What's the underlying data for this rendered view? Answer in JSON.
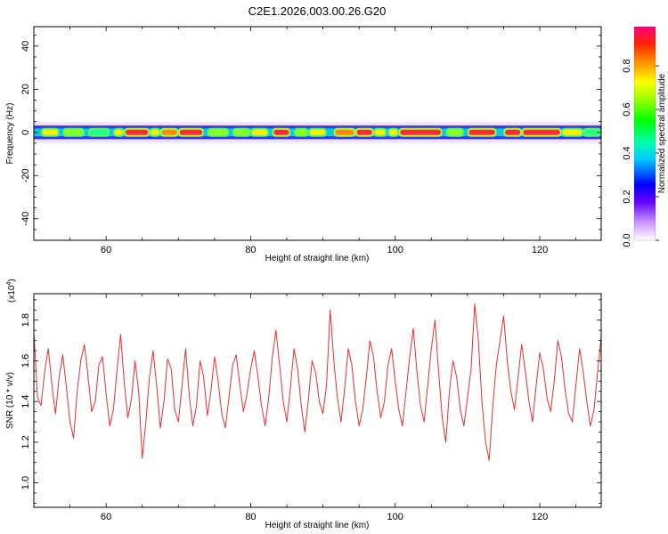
{
  "title": "C2E1.2026.003.00.26.G20",
  "chart_data": [
    {
      "type": "heatmap",
      "name": "spectrogram",
      "xlabel": "Height of straight line (km)",
      "ylabel": "Frequency (Hz)",
      "xlim": [
        50,
        128.5
      ],
      "ylim": [
        -50,
        49
      ],
      "xticks": [
        60,
        80,
        100,
        120
      ],
      "yticks": [
        -40,
        -20,
        0,
        20,
        40
      ],
      "band_center_hz": 0,
      "band_halfwidth_hz": 3,
      "ridge_segments": [
        {
          "x0": 51.0,
          "x1": 53.5,
          "amp": 0.75
        },
        {
          "x0": 54.0,
          "x1": 57.0,
          "amp": 0.6
        },
        {
          "x0": 57.5,
          "x1": 60.5,
          "amp": 0.55
        },
        {
          "x0": 61.0,
          "x1": 62.5,
          "amp": 0.7
        },
        {
          "x0": 62.5,
          "x1": 66.0,
          "amp": 0.95
        },
        {
          "x0": 66.0,
          "x1": 67.5,
          "amp": 0.75
        },
        {
          "x0": 67.5,
          "x1": 70.0,
          "amp": 0.85
        },
        {
          "x0": 70.0,
          "x1": 73.5,
          "amp": 0.95
        },
        {
          "x0": 74.0,
          "x1": 77.0,
          "amp": 0.6
        },
        {
          "x0": 77.5,
          "x1": 80.0,
          "amp": 0.65
        },
        {
          "x0": 80.0,
          "x1": 82.5,
          "amp": 0.7
        },
        {
          "x0": 83.0,
          "x1": 85.5,
          "amp": 0.95
        },
        {
          "x0": 86.0,
          "x1": 88.0,
          "amp": 0.6
        },
        {
          "x0": 88.0,
          "x1": 90.5,
          "amp": 0.75
        },
        {
          "x0": 91.5,
          "x1": 94.5,
          "amp": 0.8
        },
        {
          "x0": 94.5,
          "x1": 97.0,
          "amp": 0.9
        },
        {
          "x0": 97.0,
          "x1": 98.8,
          "amp": 0.7
        },
        {
          "x0": 99.0,
          "x1": 100.5,
          "amp": 0.78
        },
        {
          "x0": 100.5,
          "x1": 106.5,
          "amp": 0.95
        },
        {
          "x0": 107.0,
          "x1": 109.5,
          "amp": 0.6
        },
        {
          "x0": 110.0,
          "x1": 114.0,
          "amp": 0.9
        },
        {
          "x0": 115.0,
          "x1": 117.5,
          "amp": 0.95
        },
        {
          "x0": 117.5,
          "x1": 123.0,
          "amp": 0.97
        },
        {
          "x0": 123.0,
          "x1": 126.0,
          "amp": 0.7
        },
        {
          "x0": 126.0,
          "x1": 128.5,
          "amp": 0.55
        }
      ]
    },
    {
      "type": "colorbar",
      "name": "amplitude-colorbar",
      "label": "Normalized spectral amplitude",
      "range": [
        0,
        0.98
      ],
      "ticks": [
        "0.0",
        "0.2",
        "0.4",
        "0.6",
        "0.8"
      ],
      "tick_values": [
        0.0,
        0.2,
        0.4,
        0.6,
        0.8
      ]
    },
    {
      "type": "line",
      "name": "snr",
      "xlabel": "Height of straight line (km)",
      "ylabel": "SNR (10 * v/v)",
      "scale_label": "(x10",
      "scale_exp": "4",
      "scale_close": ")",
      "xlim": [
        50,
        128.5
      ],
      "ylim": [
        0.88,
        1.93
      ],
      "xticks": [
        60,
        80,
        100,
        120
      ],
      "yticks": [
        "1.0",
        "1.2",
        "1.4",
        "1.6",
        "1.8"
      ],
      "ytick_values": [
        1.0,
        1.2,
        1.4,
        1.6,
        1.8
      ],
      "color": "#e53030",
      "x_start": 50,
      "x_step": 0.5,
      "y": [
        1.74,
        1.42,
        1.38,
        1.55,
        1.66,
        1.48,
        1.34,
        1.52,
        1.63,
        1.47,
        1.3,
        1.22,
        1.45,
        1.6,
        1.68,
        1.52,
        1.35,
        1.4,
        1.58,
        1.62,
        1.44,
        1.28,
        1.36,
        1.55,
        1.73,
        1.5,
        1.32,
        1.41,
        1.6,
        1.45,
        1.12,
        1.3,
        1.52,
        1.65,
        1.48,
        1.27,
        1.4,
        1.61,
        1.56,
        1.36,
        1.3,
        1.48,
        1.66,
        1.43,
        1.28,
        1.38,
        1.6,
        1.52,
        1.33,
        1.45,
        1.62,
        1.5,
        1.34,
        1.27,
        1.42,
        1.58,
        1.63,
        1.48,
        1.35,
        1.44,
        1.56,
        1.65,
        1.52,
        1.38,
        1.28,
        1.42,
        1.62,
        1.75,
        1.58,
        1.4,
        1.3,
        1.47,
        1.66,
        1.56,
        1.38,
        1.25,
        1.42,
        1.6,
        1.54,
        1.4,
        1.34,
        1.48,
        1.85,
        1.6,
        1.42,
        1.3,
        1.46,
        1.66,
        1.58,
        1.4,
        1.28,
        1.36,
        1.52,
        1.7,
        1.62,
        1.45,
        1.32,
        1.4,
        1.58,
        1.66,
        1.5,
        1.36,
        1.28,
        1.45,
        1.62,
        1.76,
        1.55,
        1.38,
        1.3,
        1.48,
        1.66,
        1.8,
        1.55,
        1.32,
        1.2,
        1.45,
        1.6,
        1.52,
        1.36,
        1.28,
        1.42,
        1.56,
        1.88,
        1.7,
        1.4,
        1.2,
        1.11,
        1.38,
        1.58,
        1.7,
        1.82,
        1.6,
        1.45,
        1.36,
        1.52,
        1.68,
        1.55,
        1.4,
        1.3,
        1.48,
        1.64,
        1.56,
        1.42,
        1.35,
        1.5,
        1.7,
        1.62,
        1.46,
        1.34,
        1.3,
        1.48,
        1.66,
        1.55,
        1.4,
        1.28,
        1.36,
        1.54,
        1.72,
        1.6,
        1.44,
        1.32,
        1.4,
        1.57,
        1.64,
        1.5,
        1.34,
        1.26,
        1.44,
        1.62,
        1.84,
        1.64,
        1.42,
        1.2,
        1.12,
        1.36,
        1.58,
        1.68,
        1.52,
        1.38,
        1.3,
        1.48,
        1.83,
        1.65,
        1.4,
        1.22,
        1.34,
        1.55,
        1.72,
        1.6,
        1.4,
        1.3,
        1.44,
        1.62,
        1.5,
        1.3,
        1.16,
        1.02,
        1.28,
        1.5,
        1.62,
        1.48,
        1.34,
        1.26,
        1.42,
        1.6,
        1.78,
        1.6,
        1.38,
        1.22,
        1.15,
        1.4,
        1.62,
        1.54,
        1.4,
        1.32,
        1.48,
        1.66,
        1.58,
        1.42,
        1.3,
        1.08,
        1.32,
        1.55,
        1.72,
        1.6,
        1.44,
        1.35,
        1.52,
        1.7,
        1.85,
        1.92,
        1.6,
        1.36,
        1.22,
        1.4,
        1.58,
        1.66,
        1.5,
        1.36,
        1.3,
        1.46,
        1.62,
        1.56,
        1.4,
        1.28,
        1.2,
        1.42,
        1.6,
        1.68,
        1.54,
        1.4,
        1.87,
        1.72,
        1.5,
        1.3,
        1.12,
        0.89,
        1.18,
        1.45,
        1.62,
        1.78,
        1.6,
        1.42,
        1.3,
        1.44,
        1.66,
        1.58,
        1.4,
        1.28,
        1.36,
        1.52,
        1.7,
        1.6,
        1.4,
        1.26,
        1.42,
        1.62,
        1.54,
        1.38,
        1.24,
        1.09,
        1.4,
        1.6,
        1.68,
        1.52,
        1.4,
        1.36,
        1.5,
        1.66,
        1.56,
        1.4,
        1.32,
        1.46,
        1.62,
        1.52,
        1.4,
        1.3,
        1.44,
        1.6,
        1.66,
        1.5,
        1.36,
        1.48,
        1.69,
        1.52,
        1.36,
        1.24,
        1.42,
        1.58,
        1.4,
        1.35,
        1.54,
        1.48
      ]
    }
  ]
}
